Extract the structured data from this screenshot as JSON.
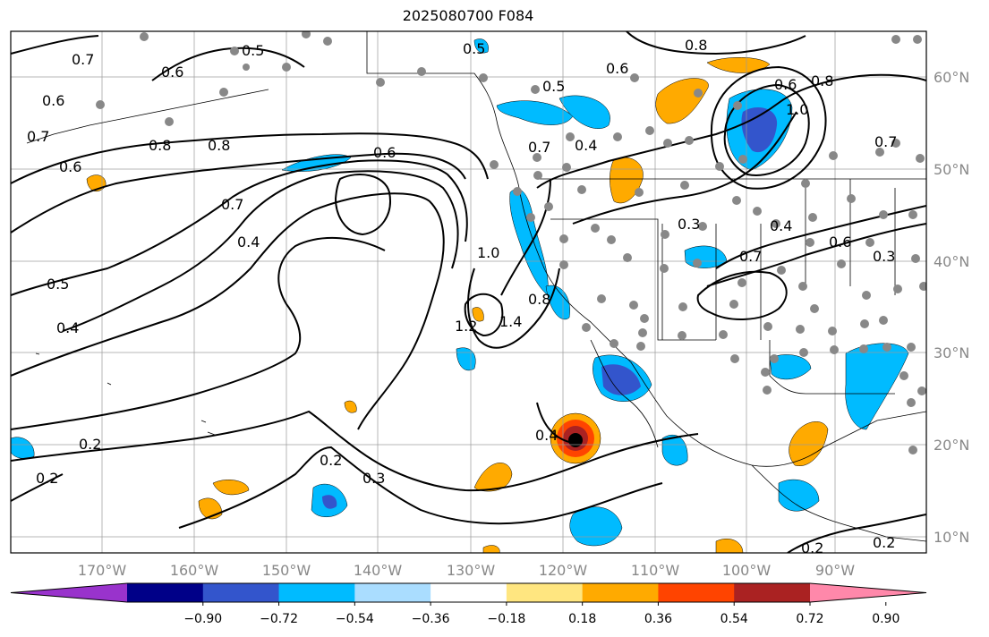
{
  "title": "2025080700 F084",
  "lon_ticks": [
    "170°W",
    "160°W",
    "150°W",
    "140°W",
    "130°W",
    "120°W",
    "110°W",
    "100°W",
    "90°W"
  ],
  "lat_ticks": [
    "60°N",
    "50°N",
    "40°N",
    "30°N",
    "20°N",
    "10°N"
  ],
  "colorbar": {
    "labels": [
      "−0.90",
      "−0.72",
      "−0.54",
      "−0.36",
      "−0.18",
      "0.18",
      "0.36",
      "0.54",
      "0.72",
      "0.90"
    ],
    "colors": [
      "#9933cc",
      "#000088",
      "#3355cc",
      "#00bbff",
      "#aaddff",
      "#ffffff",
      "#ffe680",
      "#ffaa00",
      "#ff4400",
      "#aa2222",
      "#ff88aa"
    ]
  },
  "contour_labels": [
    "0.7",
    "0.6",
    "0.5",
    "0.8",
    "0.8",
    "0.6",
    "0.6",
    "0.7",
    "0.6",
    "0.7",
    "0.4",
    "0.5",
    "0.4",
    "1.0",
    "1.2",
    "1.4",
    "0.8",
    "0.2",
    "0.2",
    "0.2",
    "0.3",
    "0.4",
    "0.5",
    "0.5",
    "0.6",
    "0.4",
    "0.7",
    "0.8",
    "0.6",
    "0.8",
    "1.0",
    "0.7",
    "0.3",
    "0.4",
    "0.6",
    "0.3",
    "0.7",
    "0.2",
    "0.2"
  ]
}
